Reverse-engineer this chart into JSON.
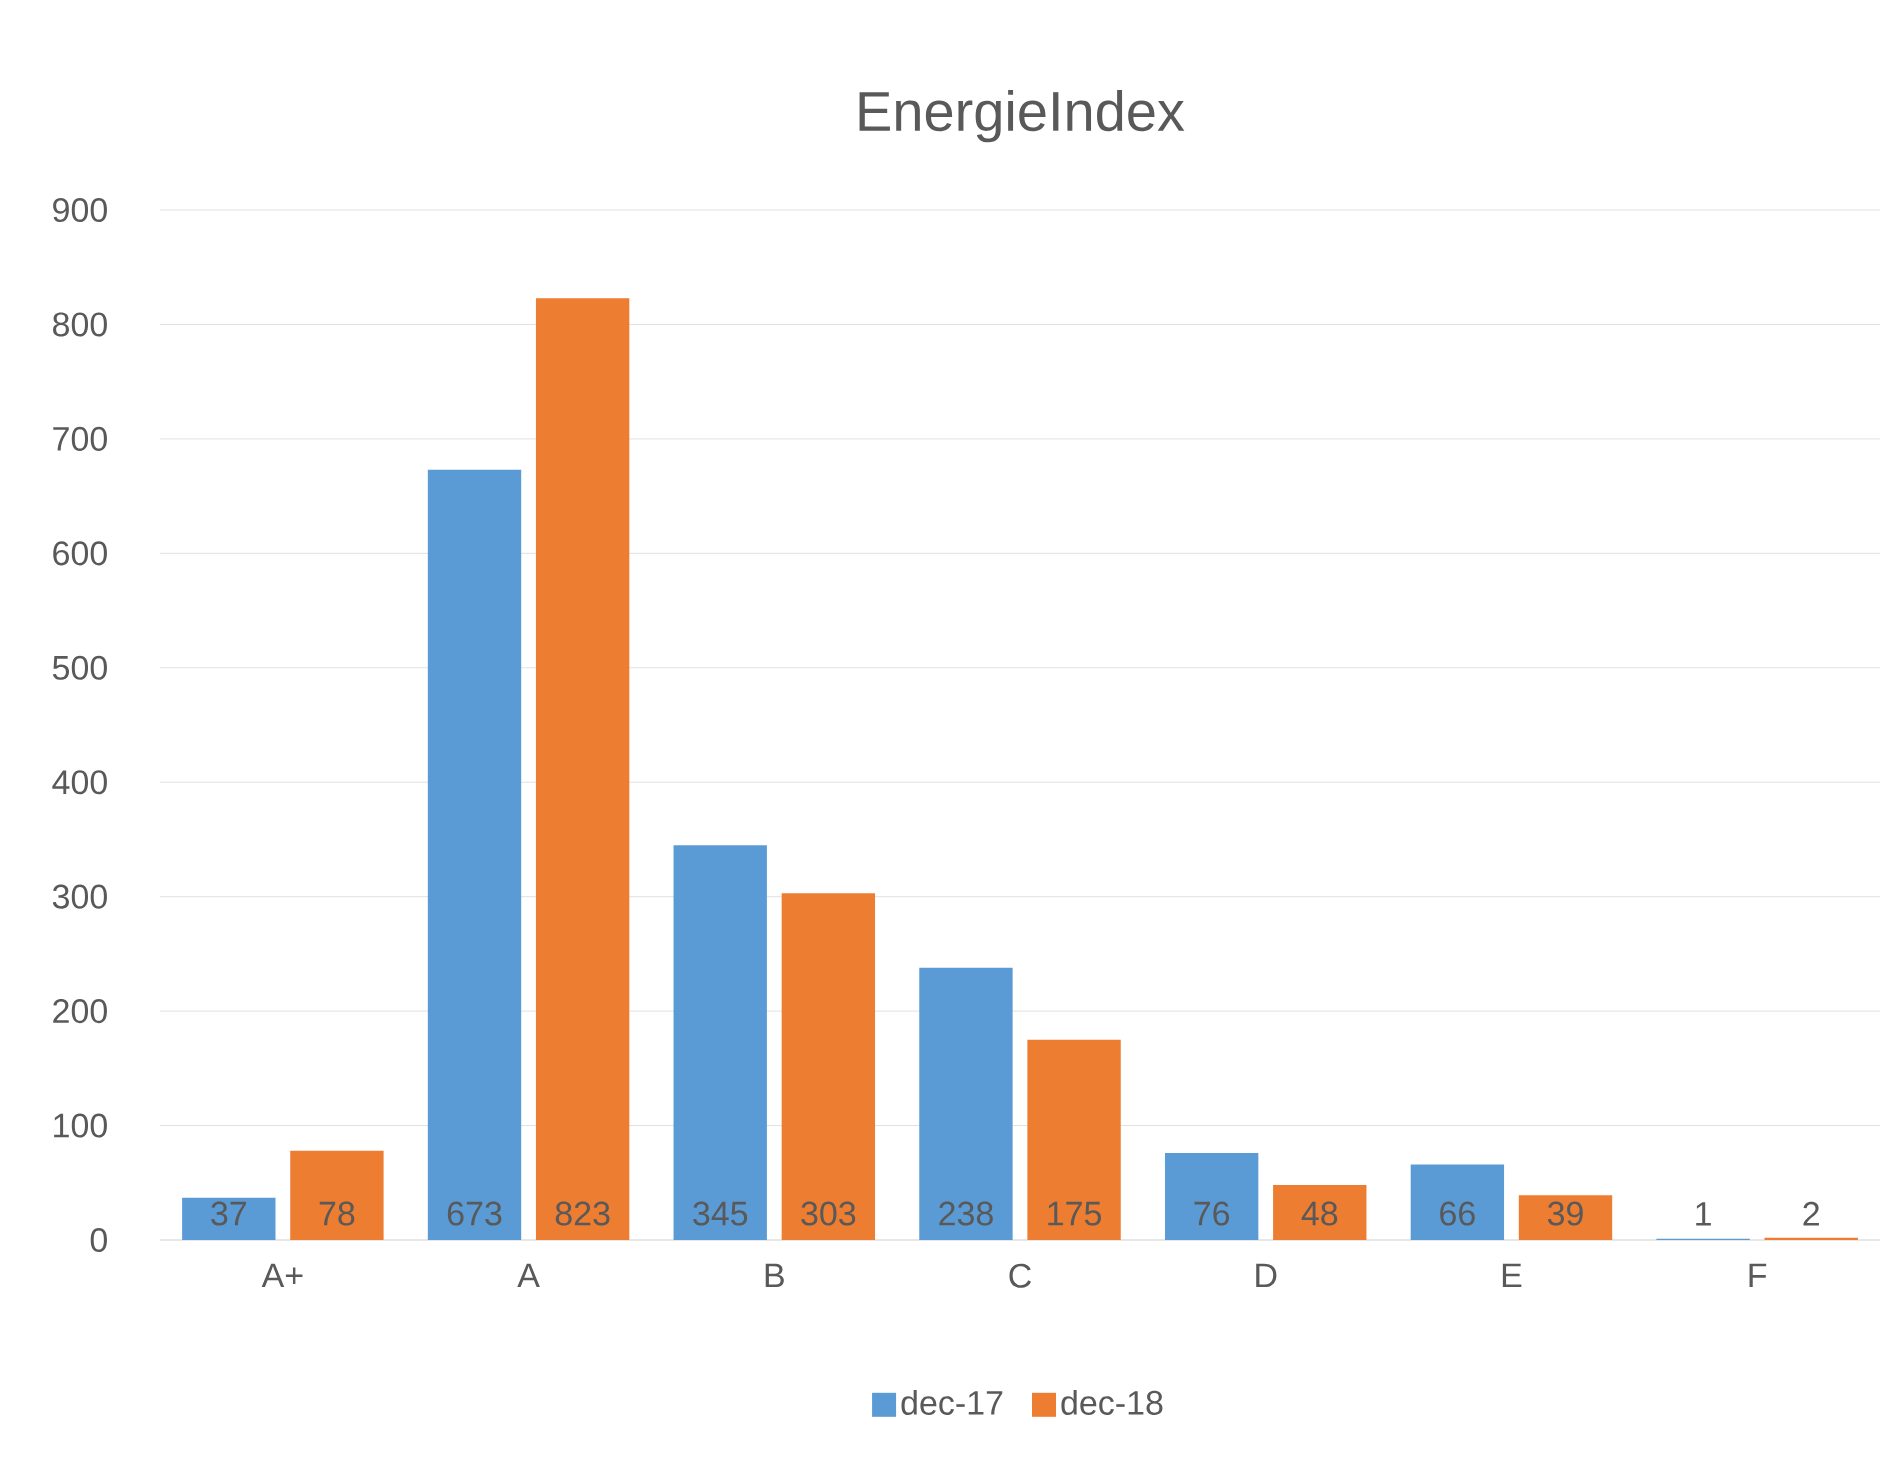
{
  "chart_data": {
    "type": "bar",
    "title": "EnergieIndex",
    "categories": [
      "A+",
      "A",
      "B",
      "C",
      "D",
      "E",
      "F"
    ],
    "series": [
      {
        "name": "dec-17",
        "color": "#5b9bd5",
        "values": [
          37,
          673,
          345,
          238,
          76,
          66,
          1
        ]
      },
      {
        "name": "dec-18",
        "color": "#ed7d31",
        "values": [
          78,
          823,
          303,
          175,
          48,
          39,
          2
        ]
      }
    ],
    "ylim": [
      0,
      900
    ],
    "yticks": [
      0,
      100,
      200,
      300,
      400,
      500,
      600,
      700,
      800,
      900
    ],
    "grid": "y",
    "legend": "bottom",
    "data_labels": true
  }
}
